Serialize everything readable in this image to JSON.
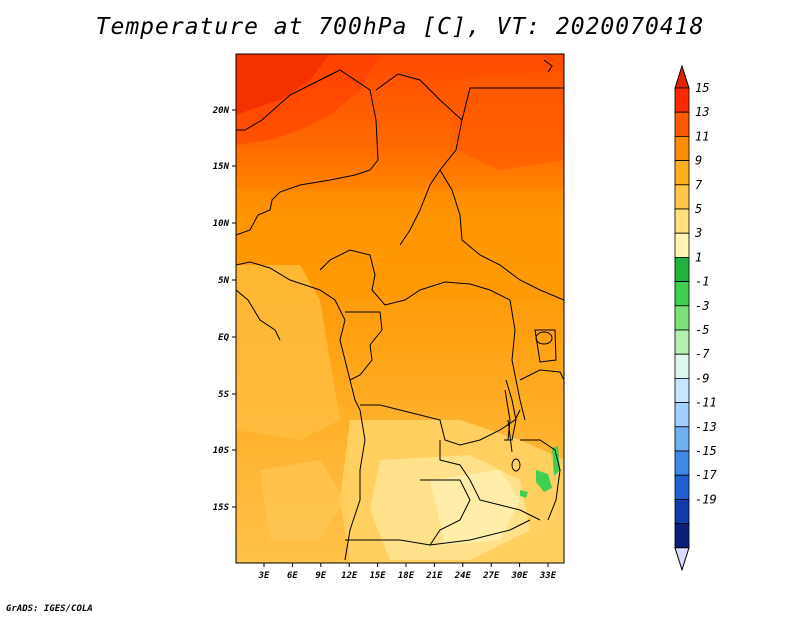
{
  "title": "Temperature at 700hPa [C], VT: 2020070418",
  "credit": "GrADS: IGES/COLA",
  "lat_labels": [
    "20N",
    "15N",
    "10N",
    "5N",
    "EQ",
    "5S",
    "10S",
    "15S"
  ],
  "lon_labels": [
    "3E",
    "6E",
    "9E",
    "12E",
    "15E",
    "18E",
    "21E",
    "24E",
    "27E",
    "30E",
    "33E"
  ],
  "colorbar": {
    "labels": [
      "15",
      "13",
      "11",
      "9",
      "7",
      "5",
      "3",
      "1",
      "-1",
      "-3",
      "-5",
      "-7",
      "-9",
      "-11",
      "-13",
      "-15",
      "-17",
      "-19"
    ],
    "colors": [
      "#ff2a00",
      "#ff5a00",
      "#ff8c00",
      "#ffae1e",
      "#ffc74a",
      "#ffe07c",
      "#fff4b0",
      "#22b43a",
      "#3ed04e",
      "#7be27a",
      "#b4f0b0",
      "#dff8ee",
      "#c6e6ff",
      "#9fd0ff",
      "#6fb0f0",
      "#3f88e6",
      "#1e5fd4",
      "#0f3ca8",
      "#0a1f78"
    ],
    "over_color": "#e02000",
    "under_color": "#dcdcff"
  }
}
